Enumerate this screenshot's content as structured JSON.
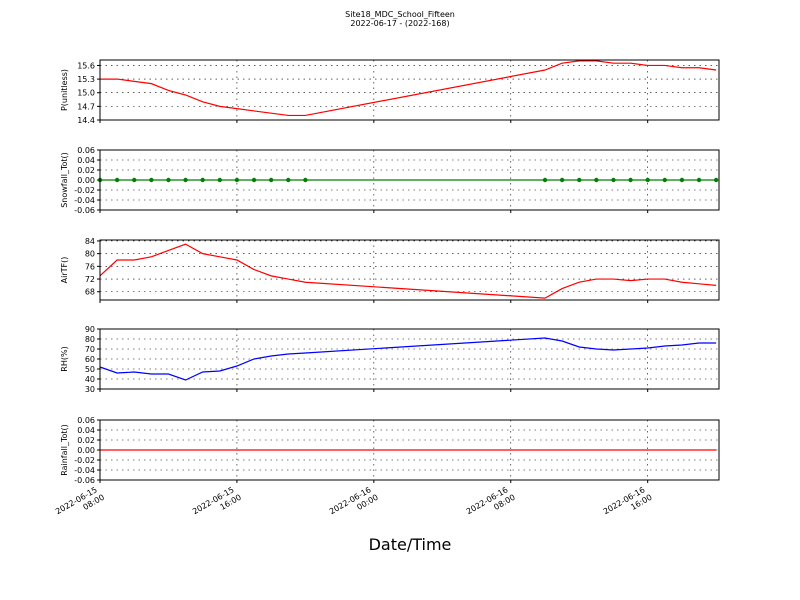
{
  "title": "Site18_MDC_School_Fifteen",
  "subtitle": "2022-06-17 - (2022-168)",
  "xlabel": "Date/Time",
  "x": [
    "2022-06-15 08:00",
    "2022-06-15 09:00",
    "2022-06-15 10:00",
    "2022-06-15 11:00",
    "2022-06-15 12:00",
    "2022-06-15 13:00",
    "2022-06-15 14:00",
    "2022-06-15 15:00",
    "2022-06-15 16:00",
    "2022-06-15 17:00",
    "2022-06-15 18:00",
    "2022-06-15 19:00",
    "2022-06-15 20:00",
    "2022-06-16 10:00",
    "2022-06-16 11:00",
    "2022-06-16 12:00",
    "2022-06-16 13:00",
    "2022-06-16 14:00",
    "2022-06-16 15:00",
    "2022-06-16 16:00",
    "2022-06-16 17:00",
    "2022-06-16 18:00",
    "2022-06-16 19:00",
    "2022-06-16 20:00"
  ],
  "xlim": [
    "2022-06-15 08:00",
    "2022-06-16 20:10"
  ],
  "xticks": [
    "2022-06-15 08:00",
    "2022-06-15 16:00",
    "2022-06-16 00:00",
    "2022-06-16 08:00",
    "2022-06-16 16:00"
  ],
  "grid": true,
  "chart_data": [
    {
      "type": "line",
      "ylabel": "P(unitless)",
      "color": "#ff0000",
      "marker": false,
      "values": [
        15.3,
        15.3,
        15.25,
        15.2,
        15.05,
        14.95,
        14.8,
        14.7,
        14.65,
        14.6,
        14.55,
        14.5,
        14.5,
        15.5,
        15.65,
        15.7,
        15.7,
        15.65,
        15.65,
        15.6,
        15.6,
        15.55,
        15.55,
        15.5
      ],
      "ylim": [
        14.4,
        15.72
      ],
      "yticks": [
        14.4,
        14.7,
        {
          "value": 15.0,
          "label": "15.0"
        },
        15.3,
        15.6
      ]
    },
    {
      "type": "line",
      "ylabel": "Snowfall_Tot()",
      "color": "#008000",
      "marker": true,
      "values": [
        0,
        0,
        0,
        0,
        0,
        0,
        0,
        0,
        0,
        0,
        0,
        0,
        0,
        0,
        0,
        0,
        0,
        0,
        0,
        0,
        0,
        0,
        0,
        0
      ],
      "ylim": [
        -0.06,
        0.06
      ],
      "yticks": [
        {
          "value": -0.06,
          "label": "-0.06"
        },
        {
          "value": -0.04,
          "label": "-0.04"
        },
        {
          "value": -0.02,
          "label": "-0.02"
        },
        {
          "value": 0,
          "label": "0.00"
        },
        {
          "value": 0.02,
          "label": "0.02"
        },
        {
          "value": 0.04,
          "label": "0.04"
        },
        {
          "value": 0.06,
          "label": "0.06"
        }
      ]
    },
    {
      "type": "line",
      "ylabel": "AirTF()",
      "color": "#ff0000",
      "marker": false,
      "values": [
        73,
        78,
        78,
        79,
        81,
        83,
        80,
        79,
        78,
        75,
        73,
        72,
        71,
        66,
        69,
        71,
        72,
        72,
        71.5,
        72,
        72,
        71,
        70.5,
        70
      ],
      "ylim": [
        65.4,
        84.3
      ],
      "yticks": [
        68,
        72,
        76,
        80,
        84
      ]
    },
    {
      "type": "line",
      "ylabel": "RH(%)",
      "color": "#0000ff",
      "marker": false,
      "values": [
        52,
        46,
        47,
        45,
        45,
        39,
        47,
        48,
        53,
        60,
        63,
        65,
        66,
        81,
        78,
        72,
        70,
        69,
        70,
        71,
        73,
        74,
        76,
        76
      ],
      "ylim": [
        30,
        90
      ],
      "yticks": [
        30,
        40,
        50,
        60,
        70,
        80,
        90
      ]
    },
    {
      "type": "line",
      "ylabel": "Rainfall_Tot()",
      "color": "#ff0000",
      "marker": false,
      "values": [
        0,
        0,
        0,
        0,
        0,
        0,
        0,
        0,
        0,
        0,
        0,
        0,
        0,
        0,
        0,
        0,
        0,
        0,
        0,
        0,
        0,
        0,
        0,
        0
      ],
      "ylim": [
        -0.06,
        0.06
      ],
      "yticks": [
        {
          "value": -0.06,
          "label": "-0.06"
        },
        {
          "value": -0.04,
          "label": "-0.04"
        },
        {
          "value": -0.02,
          "label": "-0.02"
        },
        {
          "value": 0,
          "label": "0.00"
        },
        {
          "value": 0.02,
          "label": "0.02"
        },
        {
          "value": 0.04,
          "label": "0.04"
        },
        {
          "value": 0.06,
          "label": "0.06"
        }
      ]
    }
  ]
}
